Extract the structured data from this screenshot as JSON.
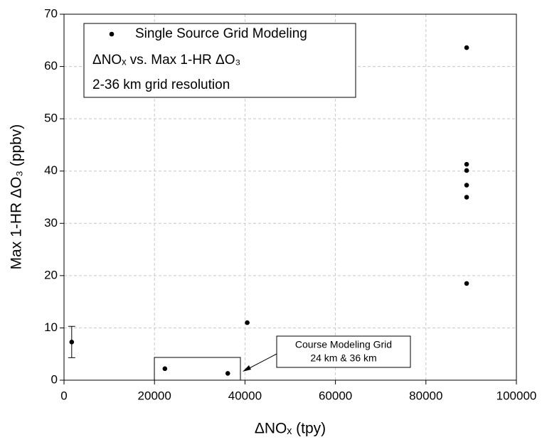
{
  "chart_data": {
    "type": "scatter",
    "xlabel": "ΔNOₓ (tpy)",
    "ylabel": "Max 1-HR ΔO₃ (ppbv)",
    "legend_lines": [
      "ΔNOₓ vs. Max 1-HR ΔO₃",
      "2-36 km grid resolution"
    ],
    "annotation": [
      "Course Modeling Grid",
      "24 km & 36 km"
    ],
    "series": [
      {
        "name": "Single Source Grid Modeling",
        "color": "#000000",
        "x": [
          1700,
          22300,
          36200,
          40500,
          89000,
          89000,
          89000,
          89000,
          89000,
          89000
        ],
        "values": [
          7.3,
          2.2,
          1.3,
          11.0,
          63.6,
          41.3,
          40.1,
          37.3,
          35.0,
          18.5
        ],
        "errors": [
          3.0,
          null,
          null,
          null,
          null,
          null,
          null,
          null,
          null,
          null
        ]
      }
    ],
    "xlim": [
      0,
      100000
    ],
    "xticks": [
      0,
      20000,
      40000,
      60000,
      80000,
      100000
    ],
    "ylim": [
      0,
      70
    ],
    "yticks": [
      0,
      10,
      20,
      30,
      40,
      50,
      60,
      70
    ],
    "grid": true,
    "legend": "upper left"
  }
}
